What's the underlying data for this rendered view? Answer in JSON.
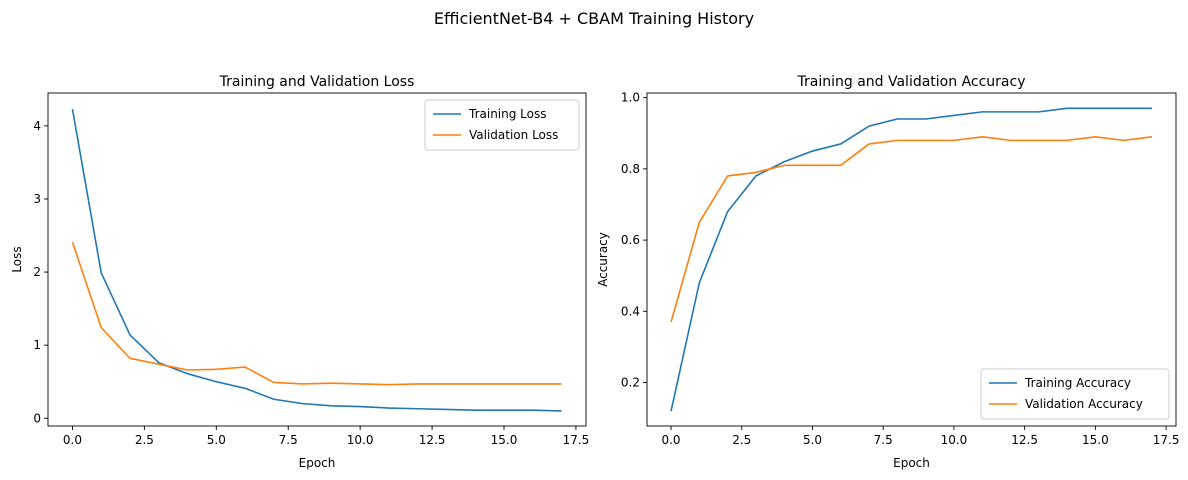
{
  "suptitle": "EfficientNet-B4 + CBAM Training History",
  "colors": {
    "blue": "#1f77b4",
    "orange": "#ff7f0e"
  },
  "chart_data": [
    {
      "type": "line",
      "title": "Training and Validation Loss",
      "xlabel": "Epoch",
      "ylabel": "Loss",
      "xlim": [
        -0.85,
        17.85
      ],
      "ylim": [
        -0.106,
        4.45
      ],
      "xticks": [
        0.0,
        2.5,
        5.0,
        7.5,
        10.0,
        12.5,
        15.0,
        17.5
      ],
      "xtick_labels": [
        "0.0",
        "2.5",
        "5.0",
        "7.5",
        "10.0",
        "12.5",
        "15.0",
        "17.5"
      ],
      "yticks": [
        0,
        1,
        2,
        3,
        4
      ],
      "ytick_labels": [
        "0",
        "1",
        "2",
        "3",
        "4"
      ],
      "grid": false,
      "legend": "top-right",
      "x": [
        0,
        1,
        2,
        3,
        4,
        5,
        6,
        7,
        8,
        9,
        10,
        11,
        12,
        13,
        14,
        15,
        16,
        17
      ],
      "series": [
        {
          "name": "Training Loss",
          "color": "#1f77b4",
          "values": [
            4.23,
            1.99,
            1.14,
            0.76,
            0.61,
            0.5,
            0.41,
            0.26,
            0.2,
            0.17,
            0.16,
            0.14,
            0.13,
            0.12,
            0.11,
            0.11,
            0.11,
            0.1
          ]
        },
        {
          "name": "Validation Loss",
          "color": "#ff7f0e",
          "values": [
            2.41,
            1.24,
            0.82,
            0.74,
            0.66,
            0.67,
            0.7,
            0.49,
            0.47,
            0.48,
            0.47,
            0.46,
            0.47,
            0.47,
            0.47,
            0.47,
            0.47,
            0.47
          ]
        }
      ]
    },
    {
      "type": "line",
      "title": "Training and Validation Accuracy",
      "xlabel": "Epoch",
      "ylabel": "Accuracy",
      "xlim": [
        -0.85,
        17.85
      ],
      "ylim": [
        0.078,
        1.013
      ],
      "xticks": [
        0.0,
        2.5,
        5.0,
        7.5,
        10.0,
        12.5,
        15.0,
        17.5
      ],
      "xtick_labels": [
        "0.0",
        "2.5",
        "5.0",
        "7.5",
        "10.0",
        "12.5",
        "15.0",
        "17.5"
      ],
      "yticks": [
        0.2,
        0.4,
        0.6,
        0.8,
        1.0
      ],
      "ytick_labels": [
        "0.2",
        "0.4",
        "0.6",
        "0.8",
        "1.0"
      ],
      "grid": false,
      "legend": "bottom-right",
      "x": [
        0,
        1,
        2,
        3,
        4,
        5,
        6,
        7,
        8,
        9,
        10,
        11,
        12,
        13,
        14,
        15,
        16,
        17
      ],
      "series": [
        {
          "name": "Training Accuracy",
          "color": "#1f77b4",
          "values": [
            0.12,
            0.48,
            0.68,
            0.78,
            0.82,
            0.85,
            0.87,
            0.92,
            0.94,
            0.94,
            0.95,
            0.96,
            0.96,
            0.96,
            0.97,
            0.97,
            0.97,
            0.97
          ]
        },
        {
          "name": "Validation Accuracy",
          "color": "#ff7f0e",
          "values": [
            0.37,
            0.65,
            0.78,
            0.79,
            0.81,
            0.81,
            0.81,
            0.87,
            0.88,
            0.88,
            0.88,
            0.89,
            0.88,
            0.88,
            0.88,
            0.89,
            0.88,
            0.89
          ]
        }
      ]
    }
  ]
}
